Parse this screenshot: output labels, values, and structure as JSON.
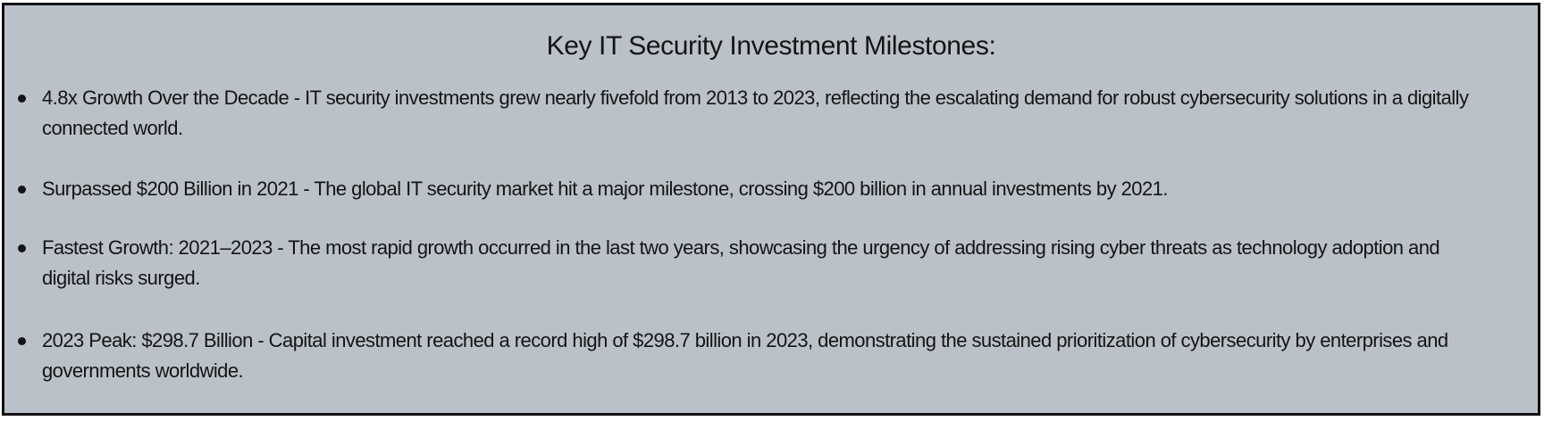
{
  "title": "Key IT Security Investment Milestones:",
  "items": [
    {
      "text": " 4.8x Growth Over the Decade - IT security investments grew nearly fivefold from 2013 to 2023, reflecting the escalating demand for robust cybersecurity solutions in a digitally connected world."
    },
    {
      "text": "Surpassed $200 Billion in 2021 - The global IT security market hit a major milestone, crossing $200 billion in annual investments by 2021."
    },
    {
      "text": "Fastest Growth: 2021–2023 - The most rapid growth occurred in the last two years, showcasing the urgency of addressing rising cyber threats as technology adoption and digital risks surged."
    },
    {
      "text": "2023 Peak: $298.7 Billion - Capital investment reached a record high of $298.7 billion in 2023, demonstrating the sustained prioritization of cybersecurity by enterprises and governments worldwide."
    }
  ],
  "colors": {
    "panel_background": "#bbc1c9",
    "border": "#111111",
    "text": "#141414"
  }
}
